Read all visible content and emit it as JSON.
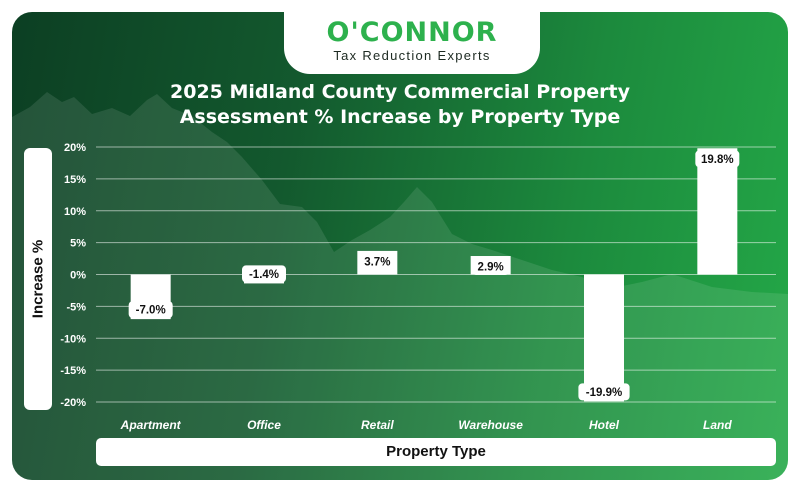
{
  "brand": {
    "name": "O'CONNOR",
    "tagline": "Tax Reduction Experts"
  },
  "colors": {
    "bg_dark": "#0c3f23",
    "bg_light": "#24a948",
    "brand_green": "#2db14d",
    "bar": "#ffffff",
    "text_dark": "#111111"
  },
  "chart_data": {
    "type": "bar",
    "title": [
      "2025 Midland County Commercial Property",
      "Assessment % Increase by Property Type"
    ],
    "xlabel": "Property Type",
    "ylabel": "Increase %",
    "categories": [
      "Apartment",
      "Office",
      "Retail",
      "Warehouse",
      "Hotel",
      "Land"
    ],
    "values": [
      -7.0,
      -1.4,
      3.7,
      2.9,
      -19.9,
      19.8
    ],
    "data_labels": [
      "-7.0%",
      "-1.4%",
      "3.7%",
      "2.9%",
      "-19.9%",
      "19.8%"
    ],
    "ylim": [
      -20,
      20
    ],
    "yticks": [
      20,
      15,
      10,
      5,
      0,
      -5,
      -10,
      -15,
      -20
    ],
    "ytick_labels": [
      "20%",
      "15%",
      "10%",
      "5%",
      "0%",
      "-5%",
      "-10%",
      "-15%",
      "-20%"
    ],
    "grid": true,
    "legend": "none"
  }
}
